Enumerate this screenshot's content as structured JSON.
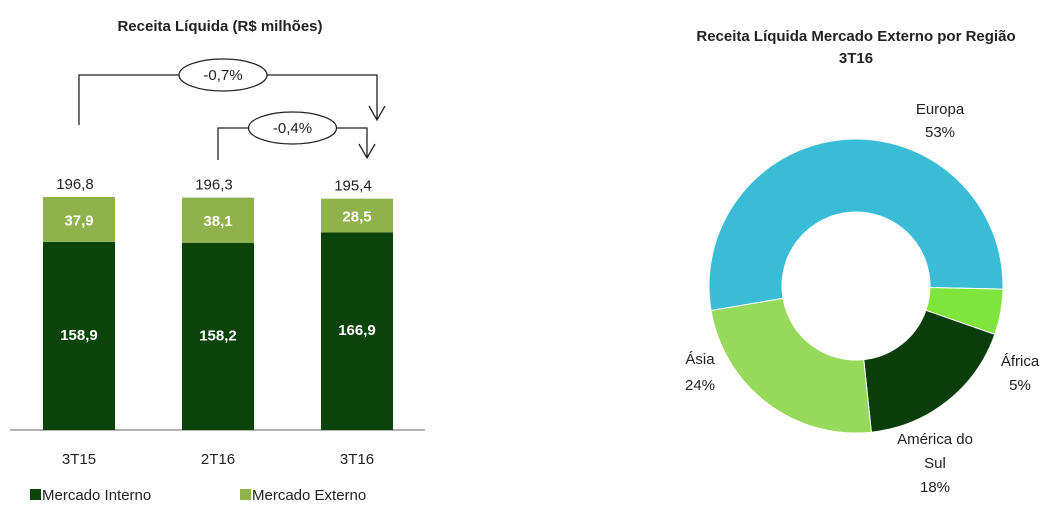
{
  "chart_data": [
    {
      "type": "stacked_bar",
      "title": "Receita Líquida (R$ milhões)",
      "categories": [
        "3T15",
        "2T16",
        "3T16"
      ],
      "series": [
        {
          "name": "Mercado Interno",
          "color": "#0b430b",
          "values": [
            158.9,
            158.2,
            166.9
          ],
          "value_labels": [
            "158,9",
            "158,2",
            "166,9"
          ]
        },
        {
          "name": "Mercado Externo",
          "color": "#8fb24d",
          "values": [
            37.9,
            38.1,
            28.5
          ],
          "value_labels": [
            "37,9",
            "38,1",
            "28,5"
          ]
        }
      ],
      "totals": [
        196.8,
        196.3,
        195.4
      ],
      "total_labels": [
        "196,8",
        "196,3",
        "195,4"
      ],
      "annotations": [
        {
          "text": "-0,7%",
          "from": "3T15",
          "to": "3T16"
        },
        {
          "text": "-0,4%",
          "from": "2T16",
          "to": "3T16"
        }
      ]
    },
    {
      "type": "donut",
      "title": "Receita Líquida Mercado Externo por Região",
      "subtitle": "3T16",
      "categories": [
        "Europa",
        "África",
        "América do Sul",
        "Ásia"
      ],
      "values": [
        53,
        5,
        18,
        24
      ],
      "value_labels": [
        "53%",
        "5%",
        "18%",
        "24%"
      ],
      "colors": [
        "#3bbcd6",
        "#7fe53c",
        "#0b3d0b",
        "#97d95a"
      ]
    }
  ]
}
